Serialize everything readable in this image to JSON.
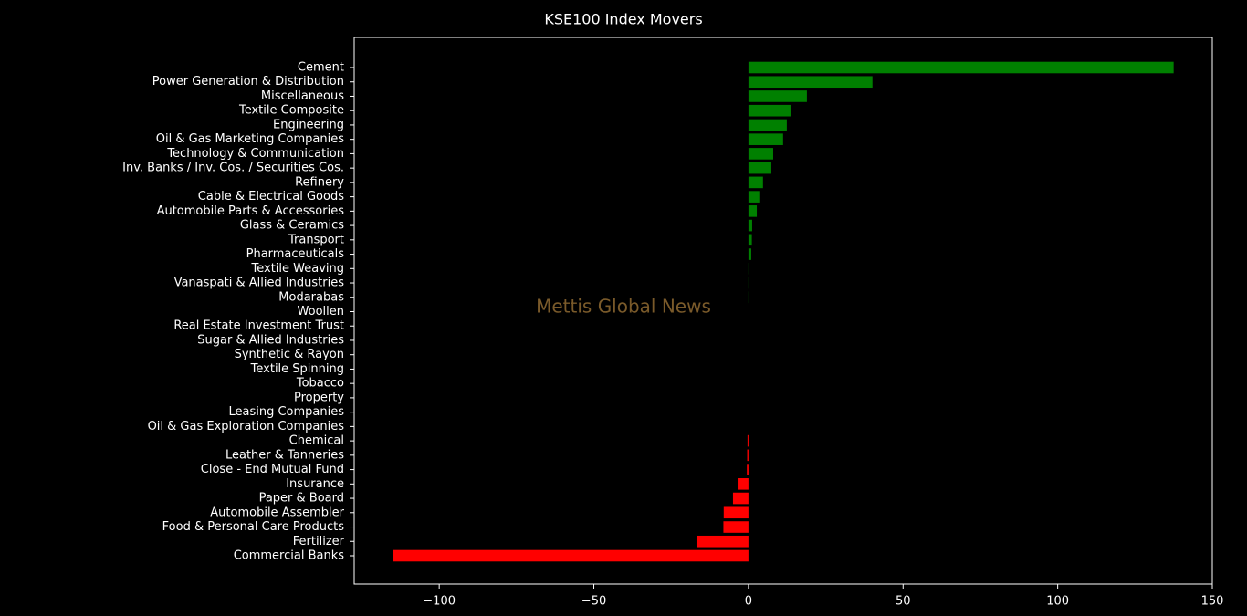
{
  "chart_data": {
    "type": "barh",
    "title": "KSE100 Index Movers",
    "watermark": "Mettis Global News",
    "categories": [
      "Cement",
      "Power Generation & Distribution",
      "Miscellaneous",
      "Textile Composite",
      "Engineering",
      "Oil & Gas Marketing Companies",
      "Technology & Communication",
      "Inv. Banks / Inv. Cos. / Securities Cos.",
      "Refinery",
      "Cable & Electrical Goods",
      "Automobile Parts & Accessories",
      "Glass & Ceramics",
      "Transport",
      "Pharmaceuticals",
      "Textile Weaving",
      "Vanaspati & Allied Industries",
      "Modarabas",
      "Woollen",
      "Real Estate Investment Trust",
      "Sugar & Allied Industries",
      "Synthetic & Rayon",
      "Textile Spinning",
      "Tobacco",
      "Property",
      "Leasing Companies",
      "Oil & Gas Exploration Companies",
      "Chemical",
      "Leather & Tanneries",
      "Close - End Mutual Fund",
      "Insurance",
      "Paper & Board",
      "Automobile Assembler",
      "Food & Personal Care Products",
      "Fertilizer",
      "Commercial Banks"
    ],
    "values": [
      137.5,
      40.1,
      18.9,
      13.6,
      12.4,
      11.2,
      8.0,
      7.4,
      4.7,
      3.5,
      2.7,
      1.2,
      1.1,
      0.9,
      0.3,
      0.2,
      0.2,
      0,
      0,
      0,
      0,
      0,
      0,
      0,
      0,
      0,
      -0.3,
      -0.4,
      -0.5,
      -3.5,
      -5.0,
      -8.0,
      -8.1,
      -16.8,
      -115.0
    ],
    "positive_color": "#008000",
    "negative_color": "#ff0000",
    "xlim": [
      -127.5,
      150
    ],
    "xticks": [
      {
        "value": -100,
        "label": "−100"
      },
      {
        "value": -50,
        "label": "−50"
      },
      0,
      50,
      100,
      150
    ],
    "grid": false
  }
}
